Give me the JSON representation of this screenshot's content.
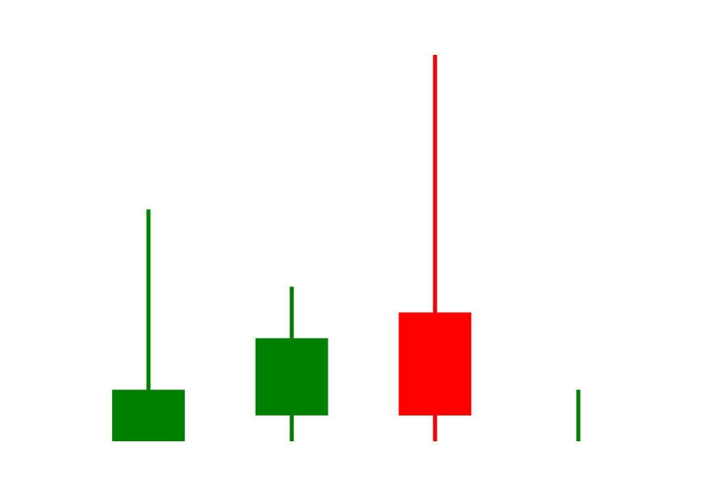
{
  "chart_data": {
    "type": "candlestick",
    "title": "",
    "xlabel": "",
    "ylabel": "",
    "axes_visible": false,
    "grid": false,
    "legend": "none",
    "x": [
      1,
      2,
      3,
      4
    ],
    "ylim": [
      0,
      15
    ],
    "series": [
      {
        "values": [
          {
            "x": 1,
            "open": 0,
            "high": 9,
            "low": 0,
            "close": 2
          },
          {
            "x": 2,
            "open": 1,
            "high": 6,
            "low": 0,
            "close": 4
          },
          {
            "x": 3,
            "open": 5,
            "high": 15,
            "low": 0,
            "close": 1
          },
          {
            "x": 4,
            "open": 0,
            "high": 2,
            "low": 0,
            "close": 0
          }
        ]
      }
    ],
    "colors": {
      "up": "#008000",
      "down": "#ff0000"
    }
  }
}
